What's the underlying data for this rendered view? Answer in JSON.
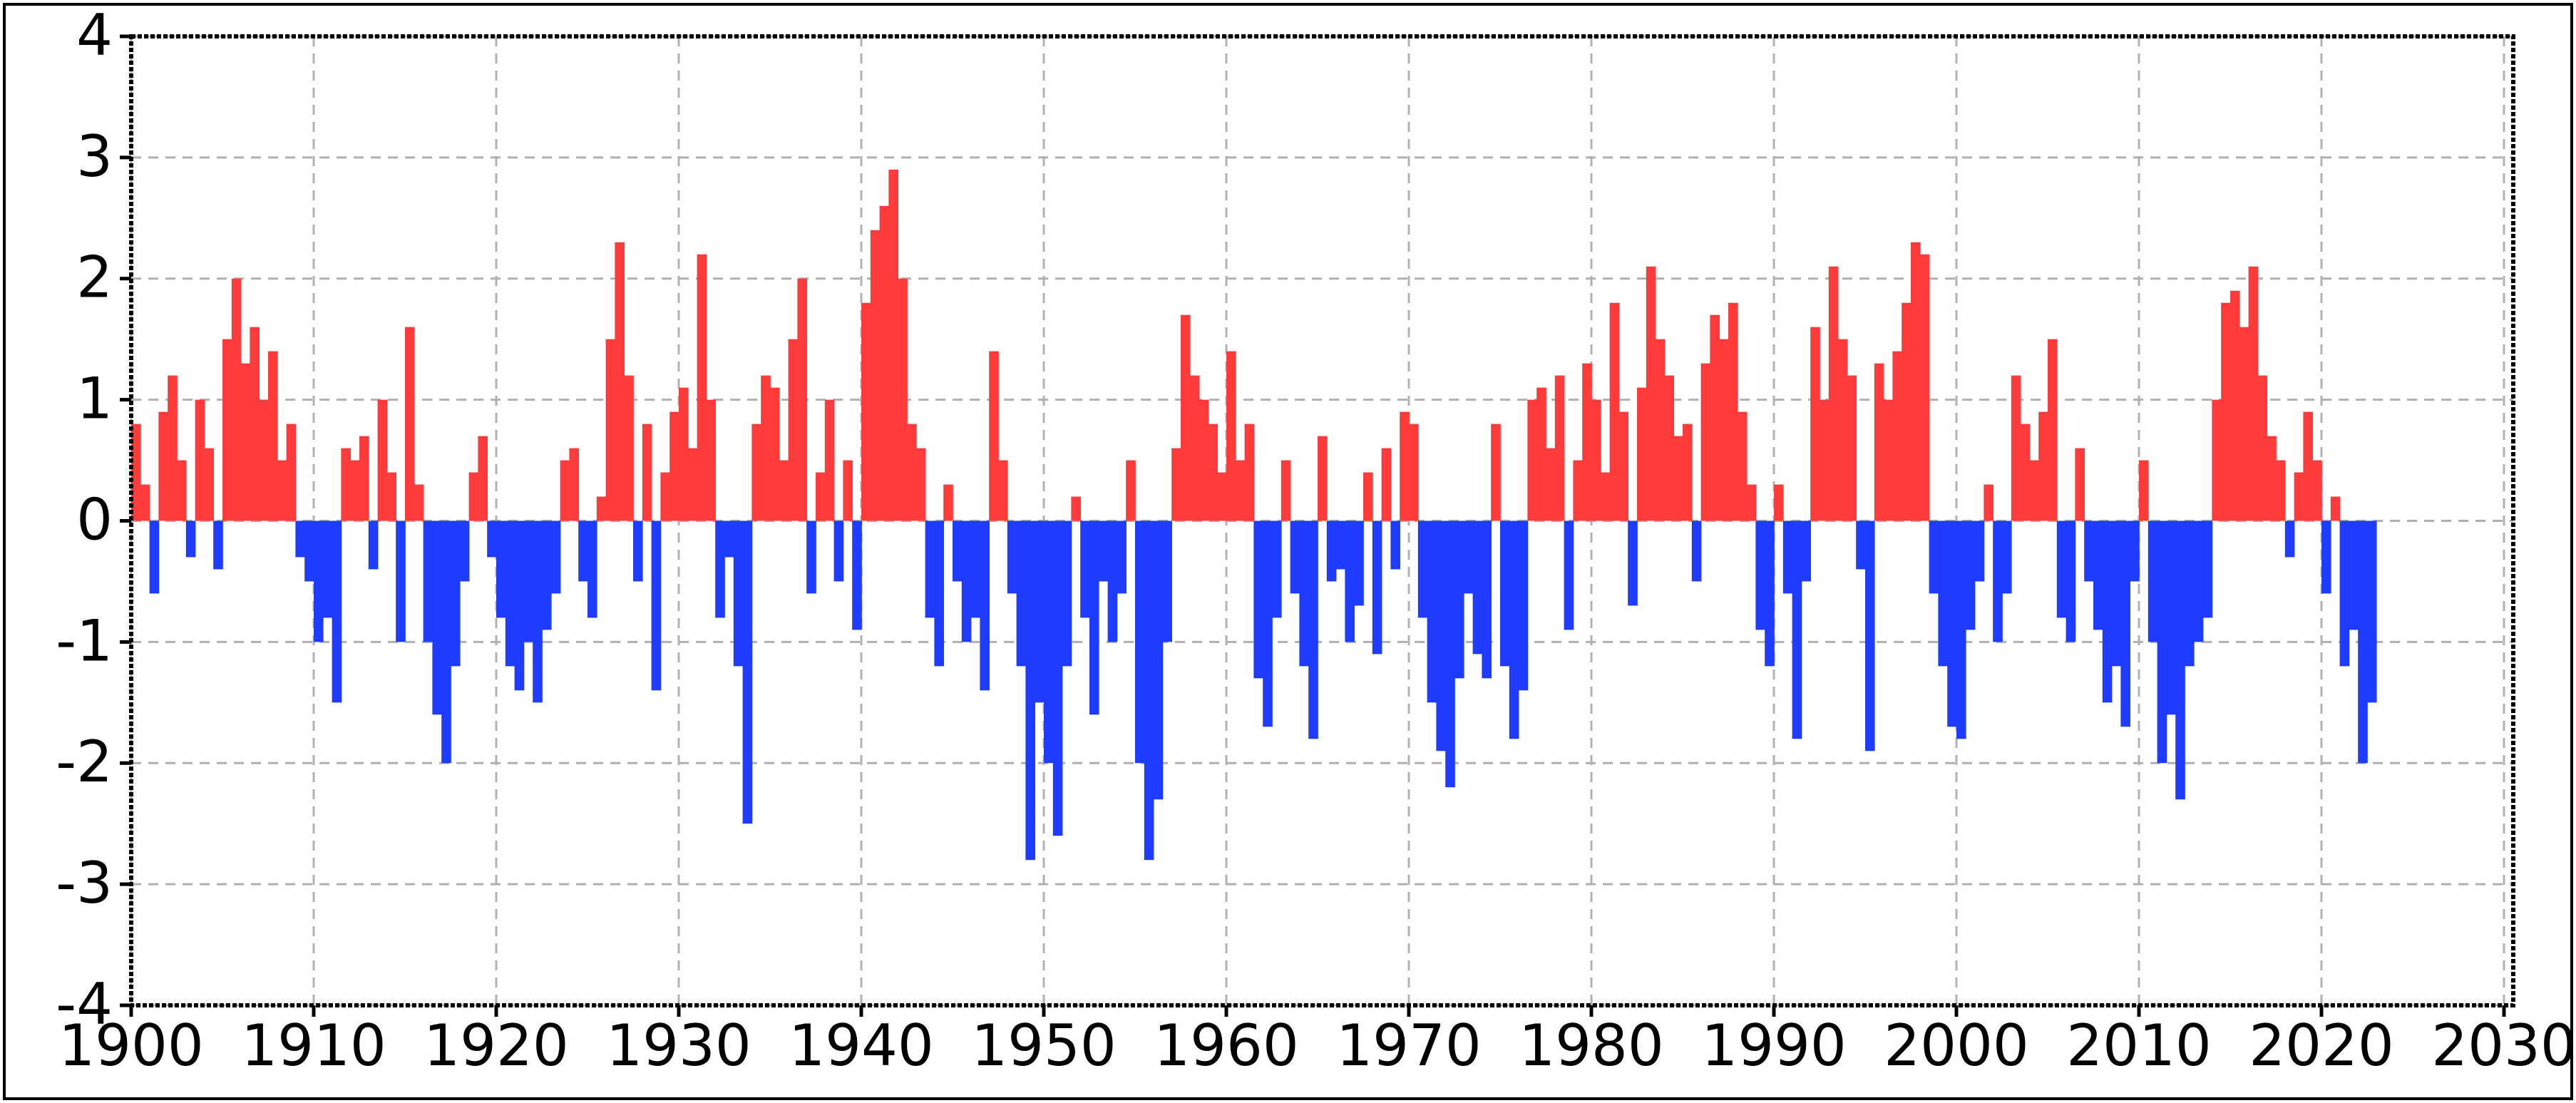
{
  "chart_data": {
    "type": "bar",
    "x": [
      1900.0,
      1900.5,
      1901.0,
      1901.5,
      1902.0,
      1902.5,
      1903.0,
      1903.5,
      1904.0,
      1904.5,
      1905.0,
      1905.5,
      1906.0,
      1906.5,
      1907.0,
      1907.5,
      1908.0,
      1908.5,
      1909.0,
      1909.5,
      1910.0,
      1910.5,
      1911.0,
      1911.5,
      1912.0,
      1912.5,
      1913.0,
      1913.5,
      1914.0,
      1914.5,
      1915.0,
      1915.5,
      1916.0,
      1916.5,
      1917.0,
      1917.5,
      1918.0,
      1918.5,
      1919.0,
      1919.5,
      1920.0,
      1920.5,
      1921.0,
      1921.5,
      1922.0,
      1922.5,
      1923.0,
      1923.5,
      1924.0,
      1924.5,
      1925.0,
      1925.5,
      1926.0,
      1926.5,
      1927.0,
      1927.5,
      1928.0,
      1928.5,
      1929.0,
      1929.5,
      1930.0,
      1930.5,
      1931.0,
      1931.5,
      1932.0,
      1932.5,
      1933.0,
      1933.5,
      1934.0,
      1934.5,
      1935.0,
      1935.5,
      1936.0,
      1936.5,
      1937.0,
      1937.5,
      1938.0,
      1938.5,
      1939.0,
      1939.5,
      1940.0,
      1940.5,
      1941.0,
      1941.5,
      1942.0,
      1942.5,
      1943.0,
      1943.5,
      1944.0,
      1944.5,
      1945.0,
      1945.5,
      1946.0,
      1946.5,
      1947.0,
      1947.5,
      1948.0,
      1948.5,
      1949.0,
      1949.5,
      1950.0,
      1950.5,
      1951.0,
      1951.5,
      1952.0,
      1952.5,
      1953.0,
      1953.5,
      1954.0,
      1954.5,
      1955.0,
      1955.5,
      1956.0,
      1956.5,
      1957.0,
      1957.5,
      1958.0,
      1958.5,
      1959.0,
      1959.5,
      1960.0,
      1960.5,
      1961.0,
      1961.5,
      1962.0,
      1962.5,
      1963.0,
      1963.5,
      1964.0,
      1964.5,
      1965.0,
      1965.5,
      1966.0,
      1966.5,
      1967.0,
      1967.5,
      1968.0,
      1968.5,
      1969.0,
      1969.5,
      1970.0,
      1970.5,
      1971.0,
      1971.5,
      1972.0,
      1972.5,
      1973.0,
      1973.5,
      1974.0,
      1974.5,
      1975.0,
      1975.5,
      1976.0,
      1976.5,
      1977.0,
      1977.5,
      1978.0,
      1978.5,
      1979.0,
      1979.5,
      1980.0,
      1980.5,
      1981.0,
      1981.5,
      1982.0,
      1982.5,
      1983.0,
      1983.5,
      1984.0,
      1984.5,
      1985.0,
      1985.5,
      1986.0,
      1986.5,
      1987.0,
      1987.5,
      1988.0,
      1988.5,
      1989.0,
      1989.5,
      1990.0,
      1990.5,
      1991.0,
      1991.5,
      1992.0,
      1992.5,
      1993.0,
      1993.5,
      1994.0,
      1994.5,
      1995.0,
      1995.5,
      1996.0,
      1996.5,
      1997.0,
      1997.5,
      1998.0,
      1998.5,
      1999.0,
      1999.5,
      2000.0,
      2000.5,
      2001.0,
      2001.5,
      2002.0,
      2002.5,
      2003.0,
      2003.5,
      2004.0,
      2004.5,
      2005.0,
      2005.5,
      2006.0,
      2006.5,
      2007.0,
      2007.5,
      2008.0,
      2008.5,
      2009.0,
      2009.5,
      2010.0,
      2010.5,
      2011.0,
      2011.5,
      2012.0,
      2012.5,
      2013.0,
      2013.5,
      2014.0,
      2014.5,
      2015.0,
      2015.5,
      2016.0,
      2016.5,
      2017.0,
      2017.5,
      2018.0,
      2018.5,
      2019.0,
      2019.5,
      2020.0,
      2020.5,
      2021.0,
      2021.5,
      2022.0,
      2022.5
    ],
    "values": [
      0.8,
      0.3,
      -0.6,
      0.9,
      1.2,
      0.5,
      -0.3,
      1.0,
      0.6,
      -0.4,
      1.5,
      2.0,
      1.3,
      1.6,
      1.0,
      1.4,
      0.5,
      0.8,
      -0.3,
      -0.5,
      -1.0,
      -0.8,
      -1.5,
      0.6,
      0.5,
      0.7,
      -0.4,
      1.0,
      0.4,
      -1.0,
      1.6,
      0.3,
      -1.0,
      -1.6,
      -2.0,
      -1.2,
      -0.5,
      0.4,
      0.7,
      -0.3,
      -0.8,
      -1.2,
      -1.4,
      -1.0,
      -1.5,
      -0.9,
      -0.6,
      0.5,
      0.6,
      -0.5,
      -0.8,
      0.2,
      1.5,
      2.3,
      1.2,
      -0.5,
      0.8,
      -1.4,
      0.4,
      0.9,
      1.1,
      0.6,
      2.2,
      1.0,
      -0.8,
      -0.3,
      -1.2,
      -2.5,
      0.8,
      1.2,
      1.1,
      0.5,
      1.5,
      2.0,
      -0.6,
      0.4,
      1.0,
      -0.5,
      0.5,
      -0.9,
      1.8,
      2.4,
      2.6,
      2.9,
      2.0,
      0.8,
      0.6,
      -0.8,
      -1.2,
      0.3,
      -0.5,
      -1.0,
      -0.8,
      -1.4,
      1.4,
      0.5,
      -0.6,
      -1.2,
      -2.8,
      -1.5,
      -2.0,
      -2.6,
      -1.2,
      0.2,
      -0.8,
      -1.6,
      -0.5,
      -1.0,
      -0.6,
      0.5,
      -2.0,
      -2.8,
      -2.3,
      -1.0,
      0.6,
      1.7,
      1.2,
      1.0,
      0.8,
      0.4,
      1.4,
      0.5,
      0.8,
      -1.3,
      -1.7,
      -0.8,
      0.5,
      -0.6,
      -1.2,
      -1.8,
      0.7,
      -0.5,
      -0.4,
      -1.0,
      -0.7,
      0.4,
      -1.1,
      0.6,
      -0.4,
      0.9,
      0.8,
      -0.8,
      -1.5,
      -1.9,
      -2.2,
      -1.3,
      -0.6,
      -1.1,
      -1.3,
      0.8,
      -1.2,
      -1.8,
      -1.4,
      1.0,
      1.1,
      0.6,
      1.2,
      -0.9,
      0.5,
      1.3,
      1.0,
      0.4,
      1.8,
      0.9,
      -0.7,
      1.1,
      2.1,
      1.5,
      1.2,
      0.7,
      0.8,
      -0.5,
      1.3,
      1.7,
      1.5,
      1.8,
      0.9,
      0.3,
      -0.9,
      -1.2,
      0.3,
      -0.6,
      -1.8,
      -0.5,
      1.6,
      1.0,
      2.1,
      1.5,
      1.2,
      -0.4,
      -1.9,
      1.3,
      1.0,
      1.4,
      1.8,
      2.3,
      2.2,
      -0.6,
      -1.2,
      -1.7,
      -1.8,
      -0.9,
      -0.5,
      0.3,
      -1.0,
      -0.6,
      1.2,
      0.8,
      0.5,
      0.9,
      1.5,
      -0.8,
      -1.0,
      0.6,
      -0.5,
      -0.9,
      -1.5,
      -1.2,
      -1.7,
      -0.5,
      0.5,
      -1.0,
      -2.0,
      -1.6,
      -2.3,
      -1.2,
      -1.0,
      -0.8,
      1.0,
      1.8,
      1.9,
      1.6,
      2.1,
      1.2,
      0.7,
      0.5,
      -0.3,
      0.4,
      0.9,
      0.5,
      -0.6,
      0.2,
      -1.2,
      -0.9,
      -2.0,
      -1.5
    ],
    "colors": {
      "positive": "#ff3a3a",
      "negative": "#1e3cff"
    },
    "xlim": [
      1900,
      2030
    ],
    "xticks": [
      1900,
      1910,
      1920,
      1930,
      1940,
      1950,
      1960,
      1970,
      1980,
      1990,
      2000,
      2010,
      2020,
      2030
    ],
    "ylim": [
      -4,
      4
    ],
    "yticks": [
      -4,
      -3,
      -2,
      -1,
      0,
      1,
      2,
      3,
      4
    ],
    "grid": true
  }
}
